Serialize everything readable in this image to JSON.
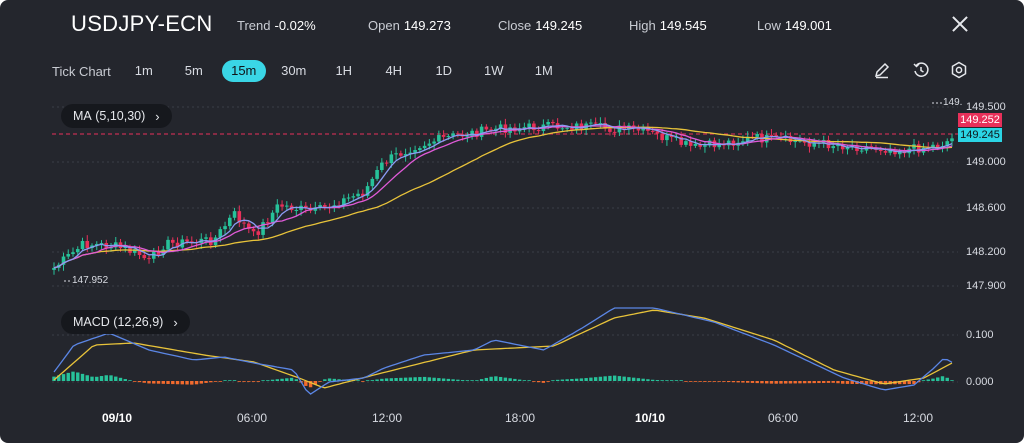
{
  "header": {
    "symbol": "USDJPY-ECN",
    "trend_label": "Trend",
    "trend_value": "-0.02%",
    "open_label": "Open",
    "open_value": "149.273",
    "close_label": "Close",
    "close_value": "149.245",
    "high_label": "High",
    "high_value": "149.545",
    "low_label": "Low",
    "low_value": "149.001"
  },
  "toolbar": {
    "chart_type": "Tick Chart",
    "timeframes": [
      "1m",
      "5m",
      "15m",
      "30m",
      "1H",
      "4H",
      "1D",
      "1W",
      "1M"
    ],
    "active_timeframe": "15m",
    "icons": [
      "draw-icon",
      "replay-icon",
      "settings-icon"
    ]
  },
  "price_panel": {
    "indicator_label": "MA",
    "indicator_params": "(5,10,30)",
    "price_labels": [
      "149.500",
      "149.000",
      "148.600",
      "148.200",
      "147.900"
    ],
    "bid_tag": "149.252",
    "ask_tag": "149.245",
    "high_marker": "149.",
    "low_marker": "147.952",
    "colors": {
      "bid_tag": "#e8305a",
      "ask_tag": "#2bd4e4",
      "up": "#27c29a",
      "down": "#e8305a",
      "ma5": "#8b9cf4",
      "ma10": "#e05ad8",
      "ma30": "#e8c33a"
    }
  },
  "macd_panel": {
    "indicator_label": "MACD",
    "indicator_params": "(12,26,9)",
    "labels": [
      "0.100",
      "0.000"
    ],
    "colors": {
      "macd": "#5b86e5",
      "signal": "#e8c33a",
      "hist_up": "#27c29a",
      "hist_down": "#f26b2e"
    }
  },
  "time_axis": [
    "09/10",
    "06:00",
    "12:00",
    "18:00",
    "10/10",
    "06:00",
    "12:00"
  ]
}
